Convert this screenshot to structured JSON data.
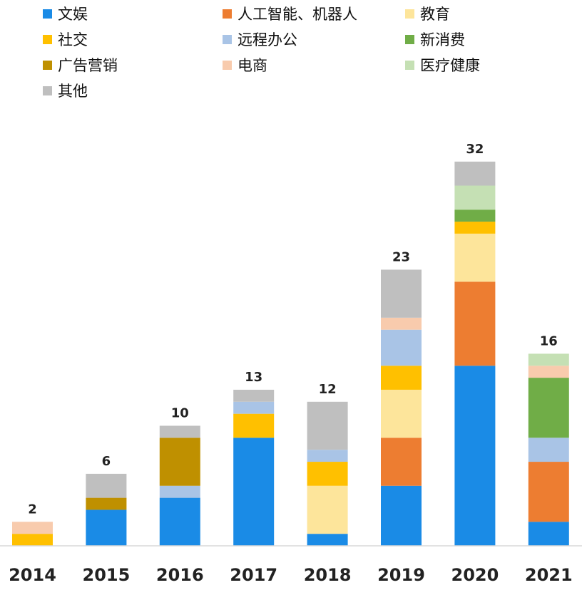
{
  "chart_data": {
    "type": "bar",
    "stacked": true,
    "categories": [
      "2014",
      "2015",
      "2016",
      "2017",
      "2018",
      "2019",
      "2020",
      "2021"
    ],
    "totals": [
      2,
      6,
      10,
      13,
      12,
      23,
      32,
      16
    ],
    "series": [
      {
        "name": "文娱",
        "color": "#1a8be6",
        "values": [
          0,
          3,
          4,
          9,
          1,
          5,
          15,
          2
        ]
      },
      {
        "name": "人工智能、机器人",
        "color": "#ed7d31",
        "values": [
          0,
          0,
          0,
          0,
          0,
          4,
          7,
          5
        ]
      },
      {
        "name": "教育",
        "color": "#fde59b",
        "values": [
          0,
          0,
          0,
          0,
          4,
          4,
          4,
          0
        ]
      },
      {
        "name": "社交",
        "color": "#ffc000",
        "values": [
          1,
          0,
          0,
          2,
          2,
          2,
          1,
          0
        ]
      },
      {
        "name": "远程办公",
        "color": "#a9c4e6",
        "values": [
          0,
          0,
          1,
          1,
          1,
          3,
          0,
          2
        ]
      },
      {
        "name": "新消费",
        "color": "#70ad47",
        "values": [
          0,
          0,
          0,
          0,
          0,
          0,
          1,
          5
        ]
      },
      {
        "name": "广告营销",
        "color": "#bf9000",
        "values": [
          0,
          1,
          4,
          0,
          0,
          0,
          0,
          0
        ]
      },
      {
        "name": "电商",
        "color": "#f8cbad",
        "values": [
          1,
          0,
          0,
          0,
          0,
          1,
          0,
          1
        ]
      },
      {
        "name": "医疗健康",
        "color": "#c5e0b4",
        "values": [
          0,
          0,
          0,
          0,
          0,
          0,
          2,
          1
        ]
      },
      {
        "name": "其他",
        "color": "#bfbfbf",
        "values": [
          0,
          2,
          1,
          1,
          4,
          4,
          2,
          0
        ]
      }
    ],
    "legend_order": [
      "文娱",
      "人工智能、机器人",
      "教育",
      "社交",
      "远程办公",
      "新消费",
      "广告营销",
      "电商",
      "医疗健康",
      "其他"
    ],
    "legend_position": "top",
    "grid": false,
    "ylim": [
      0,
      32
    ]
  }
}
